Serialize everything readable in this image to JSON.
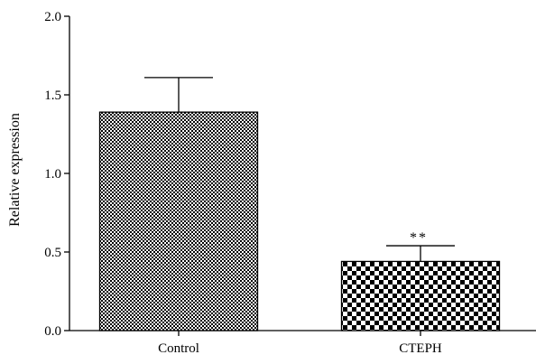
{
  "chart_data": {
    "type": "bar",
    "categories": [
      "Control",
      "CTEPH"
    ],
    "values": [
      1.39,
      0.44
    ],
    "error_upper": [
      1.61,
      0.54
    ],
    "annotations": [
      "",
      "**"
    ],
    "xlabel": "",
    "ylabel": "Relative expression",
    "ylim": [
      0,
      2.0
    ],
    "yticks": [
      "0.0",
      "0.5",
      "1.0",
      "1.5",
      "2.0"
    ],
    "ytick_values": [
      0.0,
      0.5,
      1.0,
      1.5,
      2.0
    ],
    "grid": false,
    "legend": "none",
    "colors": {
      "bar_fill": "#000000",
      "bar_background": "#ffffff",
      "axis": "#000000"
    },
    "patterns": [
      "fine-checkerboard",
      "coarse-checkerboard"
    ]
  }
}
